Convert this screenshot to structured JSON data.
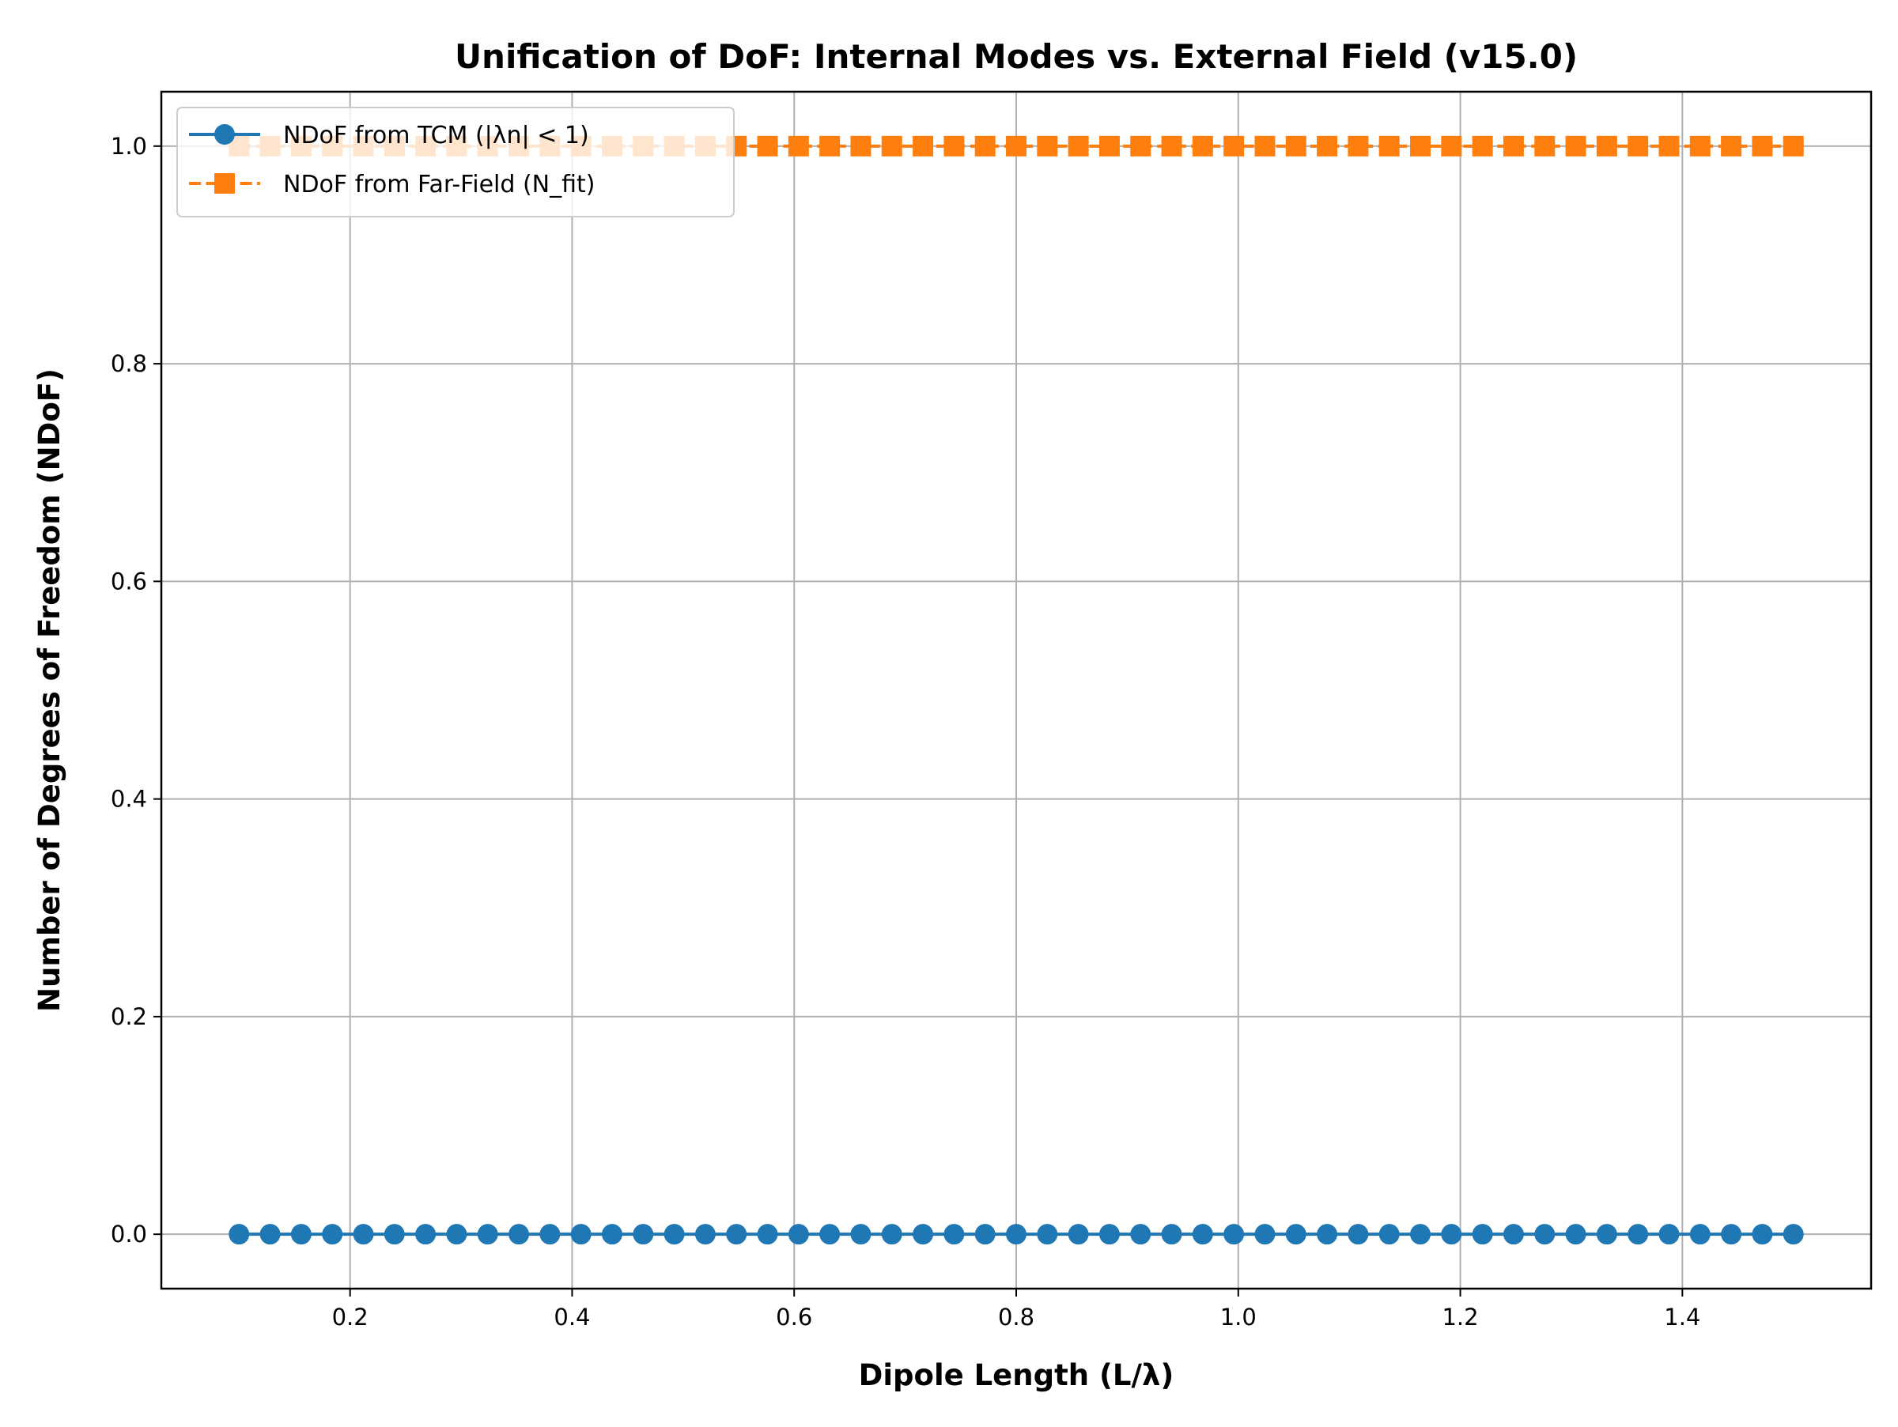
{
  "chart_data": {
    "type": "line",
    "title": "Unification of DoF: Internal Modes vs. External Field (v15.0)",
    "xlabel": "Dipole Length (L/λ)",
    "ylabel": "Number of Degrees of Freedom (NDoF)",
    "xlim": [
      0.03,
      1.57
    ],
    "ylim": [
      -0.05,
      1.05
    ],
    "xticks": [
      0.2,
      0.4,
      0.6,
      0.8,
      1.0,
      1.2,
      1.4
    ],
    "xtick_labels": [
      "0.2",
      "0.4",
      "0.6",
      "0.8",
      "1.0",
      "1.2",
      "1.4"
    ],
    "yticks": [
      0.0,
      0.2,
      0.4,
      0.6,
      0.8,
      1.0
    ],
    "ytick_labels": [
      "0.0",
      "0.2",
      "0.4",
      "0.6",
      "0.8",
      "1.0"
    ],
    "grid": true,
    "legend_position": "top-left",
    "x_start": 0.1,
    "x_end": 1.5,
    "n_points": 51,
    "series": [
      {
        "name": "NDoF from TCM (|λn| < 1)",
        "color": "#1f77b4",
        "marker": "circle",
        "linestyle": "solid",
        "value": 0
      },
      {
        "name": "NDoF from Far-Field (N_fit)",
        "color": "#ff7f0e",
        "marker": "square",
        "linestyle": "dashed",
        "value": 1
      }
    ]
  }
}
